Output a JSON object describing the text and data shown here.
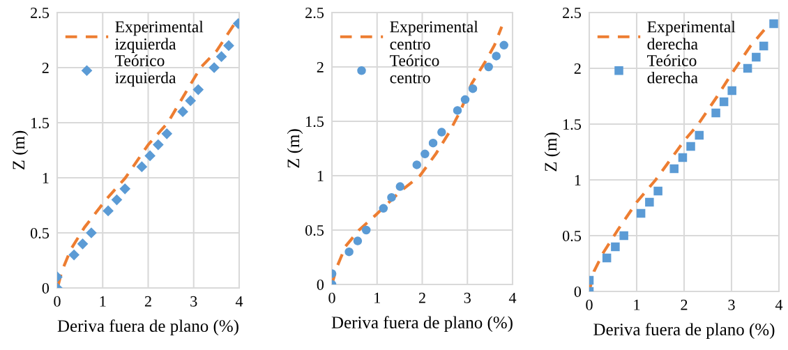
{
  "chart_data": [
    {
      "type": "scatter",
      "xlabel": "Deriva fuera de plano (%)",
      "ylabel": "Z (m)",
      "xlim": [
        0,
        4
      ],
      "ylim": [
        0,
        2.5
      ],
      "xticks": [
        0,
        1,
        2,
        3,
        4
      ],
      "yticks": [
        0,
        {
          "value": 0.5,
          "label": "0.5"
        },
        1,
        {
          "value": 1.5,
          "label": "1.5"
        },
        2,
        {
          "value": 2.5,
          "label": "2.5"
        }
      ],
      "grid": true,
      "legend": "top left",
      "series": [
        {
          "name": "Experimental izquierda",
          "type": "line",
          "line_style": "dashed",
          "marker": "none",
          "color": "#ed7d31",
          "x": [
            0.02,
            0.1,
            0.3,
            0.6,
            1.07,
            1.5,
            2.0,
            2.43,
            3.15,
            3.5,
            3.9
          ],
          "values": [
            0.02,
            0.15,
            0.35,
            0.55,
            0.8,
            1.0,
            1.3,
            1.5,
            2.0,
            2.15,
            2.4
          ]
        },
        {
          "name": "Teórico izquierda",
          "marker": "diamond",
          "color": "#5b9bd5",
          "x": [
            0,
            0,
            0.37,
            0.56,
            0.75,
            1.12,
            1.31,
            1.49,
            1.86,
            2.04,
            2.22,
            2.41,
            2.76,
            2.93,
            3.1,
            3.45,
            3.61,
            3.77,
            3.98
          ],
          "values": [
            0,
            0.1,
            0.3,
            0.4,
            0.5,
            0.7,
            0.8,
            0.9,
            1.1,
            1.2,
            1.3,
            1.4,
            1.6,
            1.7,
            1.8,
            2.0,
            2.1,
            2.2,
            2.4
          ]
        }
      ]
    },
    {
      "type": "scatter",
      "xlabel": "Deriva fuera de plano (%)",
      "ylabel": "Z (m)",
      "xlim": [
        0,
        4
      ],
      "ylim": [
        0,
        2.5
      ],
      "xticks": [
        0,
        1,
        2,
        3,
        4
      ],
      "yticks": [
        0,
        {
          "value": 0.5,
          "label": "0.5"
        },
        1,
        {
          "value": 1.5,
          "label": "1.5"
        },
        2,
        {
          "value": 2.5,
          "label": "2.5"
        }
      ],
      "grid": true,
      "legend": "top left",
      "series": [
        {
          "name": "Experimental centro",
          "type": "line",
          "line_style": "dashed",
          "marker": "none",
          "color": "#ed7d31",
          "x": [
            0.0,
            0.1,
            0.3,
            0.6,
            1.0,
            1.5,
            1.95,
            2.3,
            2.6,
            2.85,
            3.1,
            3.4,
            3.6,
            3.76
          ],
          "values": [
            0.0,
            0.15,
            0.35,
            0.5,
            0.65,
            0.85,
            1.0,
            1.2,
            1.4,
            1.6,
            1.85,
            2.05,
            2.2,
            2.37
          ]
        },
        {
          "name": "Teórico centro",
          "marker": "circle",
          "color": "#5b9bd5",
          "x": [
            0,
            0,
            0.38,
            0.57,
            0.76,
            1.14,
            1.32,
            1.51,
            1.88,
            2.06,
            2.24,
            2.43,
            2.78,
            2.95,
            3.12,
            3.47,
            3.64,
            3.81
          ],
          "values": [
            0,
            0.1,
            0.3,
            0.4,
            0.5,
            0.7,
            0.8,
            0.9,
            1.1,
            1.2,
            1.3,
            1.4,
            1.6,
            1.7,
            1.8,
            2.0,
            2.1,
            2.2
          ]
        }
      ]
    },
    {
      "type": "scatter",
      "xlabel": "Deriva fuera de plano (%)",
      "ylabel": "Z (m)",
      "xlim": [
        0,
        4
      ],
      "ylim": [
        0,
        2.5
      ],
      "xticks": [
        0,
        1,
        2,
        3,
        4
      ],
      "yticks": [
        0,
        {
          "value": 0.5,
          "label": "0.5"
        },
        1,
        {
          "value": 1.5,
          "label": "1.5"
        },
        2,
        {
          "value": 2.5,
          "label": "2.5"
        }
      ],
      "grid": true,
      "legend": "top left",
      "series": [
        {
          "name": "Experimental derecha",
          "type": "line",
          "line_style": "dashed",
          "marker": "none",
          "color": "#ed7d31",
          "x": [
            0.0,
            0.1,
            0.3,
            0.6,
            1.0,
            1.4,
            2.0,
            2.3,
            2.7,
            3.0,
            3.4,
            3.7
          ],
          "values": [
            0.0,
            0.18,
            0.35,
            0.55,
            0.8,
            1.0,
            1.35,
            1.5,
            1.75,
            1.95,
            2.2,
            2.35
          ]
        },
        {
          "name": "Teórico derecha",
          "marker": "square",
          "color": "#5b9bd5",
          "x": [
            0,
            0,
            0.37,
            0.55,
            0.73,
            1.09,
            1.27,
            1.45,
            1.79,
            1.97,
            2.14,
            2.32,
            2.67,
            2.84,
            3.01,
            3.34,
            3.52,
            3.68,
            3.89
          ],
          "values": [
            0,
            0.1,
            0.3,
            0.4,
            0.5,
            0.7,
            0.8,
            0.9,
            1.1,
            1.2,
            1.3,
            1.4,
            1.6,
            1.7,
            1.8,
            2.0,
            2.1,
            2.2,
            2.4
          ]
        }
      ]
    }
  ]
}
